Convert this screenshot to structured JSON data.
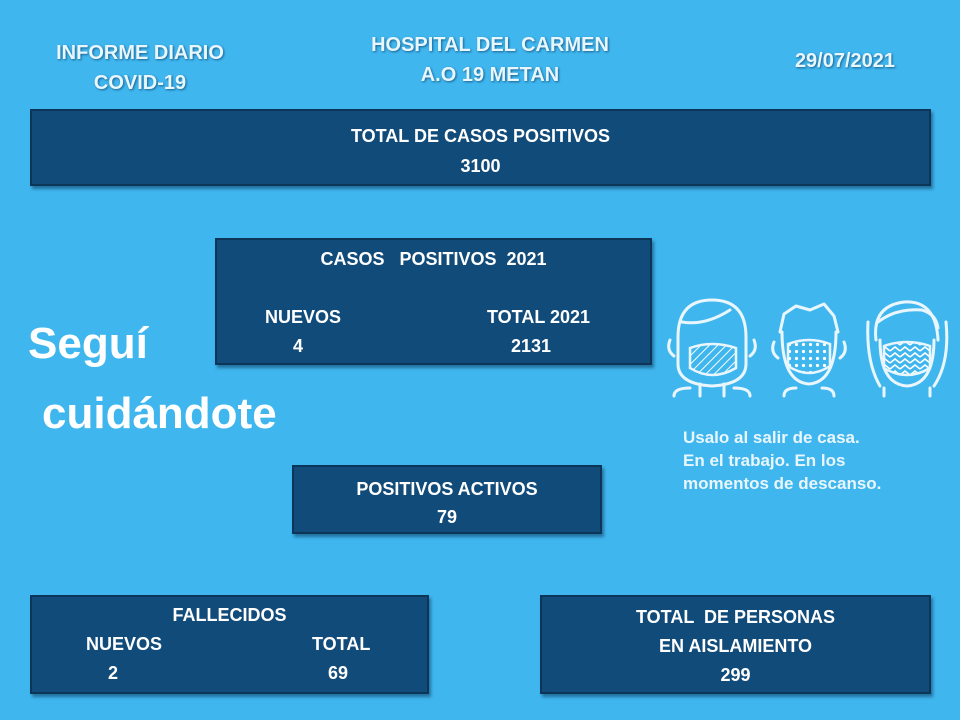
{
  "header": {
    "left_line1": "INFORME DIARIO",
    "left_line2": "COVID-19",
    "center_line1": "HOSPITAL DEL CARMEN",
    "center_line2": "A.O 19 METAN",
    "date": "29/07/2021"
  },
  "total_positive": {
    "label": "TOTAL DE CASOS POSITIVOS",
    "value": "3100"
  },
  "positive_2021": {
    "title": "CASOS   POSITIVOS  2021",
    "new_label": "NUEVOS",
    "new_value": "4",
    "total_label": "TOTAL 2021",
    "total_value": "2131"
  },
  "active": {
    "label": "POSITIVOS ACTIVOS",
    "value": "79"
  },
  "deaths": {
    "title": "FALLECIDOS",
    "new_label": "NUEVOS",
    "new_value": "2",
    "total_label": "TOTAL",
    "total_value": "69"
  },
  "isolation": {
    "line1": "TOTAL  DE PERSONAS",
    "line2": "EN AISLAMIENTO",
    "value": "299"
  },
  "slogan": {
    "line1": "Seguí",
    "line2": "cuidándote"
  },
  "tip": {
    "line1": "Usalo al salir de casa.",
    "line2": "En el trabajo. En los",
    "line3": "momentos de descanso."
  },
  "colors": {
    "background": "#3fb6ee",
    "panel": "#114b79"
  }
}
